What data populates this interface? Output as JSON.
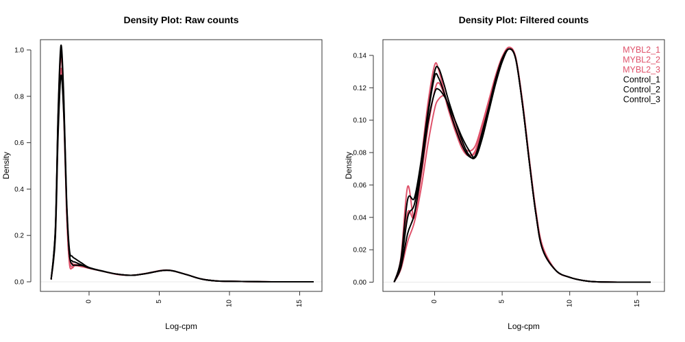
{
  "chart_data": [
    {
      "type": "line",
      "title": "Density Plot: Raw counts",
      "xlabel": "Log-cpm",
      "ylabel": "Density",
      "xlim": [
        -3.5,
        16.5
      ],
      "ylim": [
        0,
        1.04
      ],
      "xticks": [
        "0",
        "5",
        "10",
        "15"
      ],
      "xtick_values": [
        0,
        5,
        10,
        15
      ],
      "yticks": [
        "0.0",
        "0.2",
        "0.4",
        "0.6",
        "0.8",
        "1.0"
      ],
      "ytick_values": [
        0,
        0.2,
        0.4,
        0.6,
        0.8,
        1.0
      ],
      "grid": false,
      "baseline": 0,
      "x": [
        -2.7,
        -2.4,
        -2.2,
        -2.0,
        -1.8,
        -1.6,
        -1.4,
        -1.2,
        -1.0,
        -0.5,
        0,
        1,
        2,
        3,
        4,
        5,
        5.5,
        6,
        7,
        8,
        9,
        10,
        12,
        14,
        16
      ],
      "series": [
        {
          "name": "MYBL2_1",
          "color": "#DF536B",
          "values": [
            0.01,
            0.22,
            0.72,
            1.0,
            0.75,
            0.3,
            0.08,
            0.06,
            0.07,
            0.065,
            0.058,
            0.045,
            0.032,
            0.028,
            0.036,
            0.048,
            0.051,
            0.047,
            0.03,
            0.012,
            0.004,
            0.002,
            0.0005,
            0,
            0
          ]
        },
        {
          "name": "MYBL2_2",
          "color": "#DF536B",
          "values": [
            0.01,
            0.2,
            0.66,
            0.92,
            0.72,
            0.32,
            0.1,
            0.065,
            0.07,
            0.068,
            0.06,
            0.045,
            0.033,
            0.028,
            0.035,
            0.047,
            0.05,
            0.047,
            0.03,
            0.012,
            0.004,
            0.002,
            0.0005,
            0,
            0
          ]
        },
        {
          "name": "MYBL2_3",
          "color": "#DF536B",
          "values": [
            0.01,
            0.21,
            0.7,
            0.97,
            0.76,
            0.33,
            0.11,
            0.08,
            0.075,
            0.07,
            0.06,
            0.045,
            0.033,
            0.028,
            0.035,
            0.047,
            0.05,
            0.047,
            0.03,
            0.012,
            0.004,
            0.002,
            0.0005,
            0,
            0
          ]
        },
        {
          "name": "Control_1",
          "color": "#000000",
          "values": [
            0.01,
            0.23,
            0.74,
            1.02,
            0.8,
            0.36,
            0.14,
            0.11,
            0.1,
            0.08,
            0.062,
            0.046,
            0.033,
            0.028,
            0.035,
            0.047,
            0.05,
            0.047,
            0.03,
            0.012,
            0.004,
            0.002,
            0.0005,
            0,
            0
          ]
        },
        {
          "name": "Control_2",
          "color": "#000000",
          "values": [
            0.01,
            0.19,
            0.64,
            0.89,
            0.72,
            0.34,
            0.12,
            0.09,
            0.085,
            0.072,
            0.06,
            0.045,
            0.033,
            0.028,
            0.035,
            0.047,
            0.05,
            0.047,
            0.03,
            0.012,
            0.004,
            0.002,
            0.0005,
            0,
            0
          ]
        },
        {
          "name": "Control_3",
          "color": "#000000",
          "values": [
            0.01,
            0.22,
            0.72,
            0.99,
            0.78,
            0.34,
            0.12,
            0.075,
            0.072,
            0.07,
            0.06,
            0.045,
            0.033,
            0.028,
            0.035,
            0.047,
            0.05,
            0.047,
            0.03,
            0.012,
            0.004,
            0.002,
            0.0005,
            0,
            0
          ]
        }
      ]
    },
    {
      "type": "line",
      "title": "Density Plot: Filtered counts",
      "xlabel": "Log-cpm",
      "ylabel": "Density",
      "xlim": [
        -3.8,
        17
      ],
      "ylim": [
        0,
        0.146
      ],
      "xticks": [
        "0",
        "5",
        "10",
        "15"
      ],
      "xtick_values": [
        0,
        5,
        10,
        15
      ],
      "yticks": [
        "0.00",
        "0.02",
        "0.04",
        "0.06",
        "0.08",
        "0.10",
        "0.12",
        "0.14"
      ],
      "ytick_values": [
        0,
        0.02,
        0.04,
        0.06,
        0.08,
        0.1,
        0.12,
        0.14
      ],
      "grid": false,
      "baseline": 0,
      "legend": {
        "position": "top-right"
      },
      "x": [
        -3,
        -2.5,
        -2,
        -1.5,
        -1,
        -0.5,
        0,
        0.3,
        0.7,
        1,
        1.5,
        2,
        2.5,
        3,
        3.5,
        4,
        4.5,
        5,
        5.5,
        6,
        6.5,
        7,
        7.5,
        8,
        9,
        10,
        11,
        12,
        14,
        16
      ],
      "series": [
        {
          "name": "MYBL2_1",
          "color": "#DF536B",
          "values": [
            0,
            0.015,
            0.059,
            0.04,
            0.075,
            0.11,
            0.134,
            0.131,
            0.118,
            0.108,
            0.094,
            0.085,
            0.081,
            0.084,
            0.097,
            0.112,
            0.127,
            0.139,
            0.145,
            0.139,
            0.112,
            0.077,
            0.044,
            0.022,
            0.007,
            0.003,
            0.001,
            0.0002,
            0,
            0
          ]
        },
        {
          "name": "MYBL2_2",
          "color": "#DF536B",
          "values": [
            0,
            0.012,
            0.043,
            0.04,
            0.065,
            0.095,
            0.118,
            0.123,
            0.116,
            0.107,
            0.094,
            0.083,
            0.078,
            0.081,
            0.095,
            0.111,
            0.127,
            0.139,
            0.144,
            0.138,
            0.11,
            0.075,
            0.042,
            0.02,
            0.007,
            0.003,
            0.001,
            0.0002,
            0,
            0
          ]
        },
        {
          "name": "MYBL2_3",
          "color": "#DF536B",
          "values": [
            0,
            0.008,
            0.025,
            0.037,
            0.058,
            0.085,
            0.107,
            0.113,
            0.115,
            0.11,
            0.097,
            0.086,
            0.079,
            0.08,
            0.094,
            0.11,
            0.126,
            0.138,
            0.144,
            0.138,
            0.11,
            0.075,
            0.042,
            0.02,
            0.007,
            0.003,
            0.001,
            0.0002,
            0,
            0
          ]
        },
        {
          "name": "Control_1",
          "color": "#000000",
          "values": [
            0,
            0.014,
            0.051,
            0.052,
            0.075,
            0.105,
            0.13,
            0.132,
            0.122,
            0.113,
            0.1,
            0.088,
            0.079,
            0.077,
            0.09,
            0.107,
            0.124,
            0.137,
            0.144,
            0.138,
            0.11,
            0.075,
            0.042,
            0.02,
            0.007,
            0.003,
            0.001,
            0.0002,
            0,
            0
          ]
        },
        {
          "name": "Control_2",
          "color": "#000000",
          "values": [
            0,
            0.011,
            0.04,
            0.048,
            0.072,
            0.103,
            0.127,
            0.126,
            0.117,
            0.109,
            0.096,
            0.085,
            0.078,
            0.078,
            0.092,
            0.108,
            0.125,
            0.138,
            0.144,
            0.138,
            0.11,
            0.075,
            0.042,
            0.02,
            0.007,
            0.003,
            0.001,
            0.0002,
            0,
            0
          ]
        },
        {
          "name": "Control_3",
          "color": "#000000",
          "values": [
            0,
            0.009,
            0.03,
            0.042,
            0.068,
            0.098,
            0.117,
            0.119,
            0.115,
            0.11,
            0.1,
            0.09,
            0.082,
            0.077,
            0.088,
            0.105,
            0.122,
            0.136,
            0.144,
            0.138,
            0.11,
            0.075,
            0.042,
            0.02,
            0.007,
            0.003,
            0.001,
            0.0002,
            0,
            0
          ]
        }
      ]
    }
  ]
}
